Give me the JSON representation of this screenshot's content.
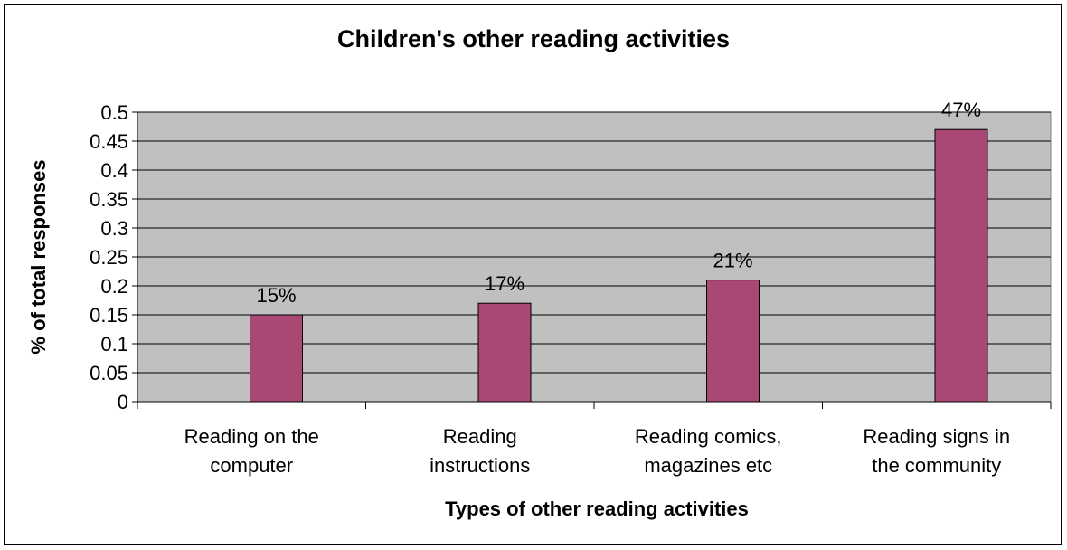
{
  "chart_data": {
    "type": "bar",
    "title": "Children's other reading activities",
    "xlabel": "Types of other reading activities",
    "ylabel": "% of total responses",
    "categories": [
      [
        "Reading on the",
        "computer"
      ],
      [
        "Reading",
        "instructions"
      ],
      [
        "Reading comics,",
        "magazines etc"
      ],
      [
        "Reading signs in",
        "the community"
      ]
    ],
    "values": [
      0.15,
      0.17,
      0.21,
      0.47
    ],
    "data_labels": [
      "15%",
      "17%",
      "21%",
      "47%"
    ],
    "ylim": [
      0,
      0.5
    ],
    "yticks": [
      "0",
      "0.05",
      "0.1",
      "0.15",
      "0.2",
      "0.25",
      "0.3",
      "0.35",
      "0.4",
      "0.45",
      "0.5"
    ],
    "ytick_values": [
      0,
      0.05,
      0.1,
      0.15,
      0.2,
      0.25,
      0.3,
      0.35,
      0.4,
      0.45,
      0.5
    ],
    "grid": true,
    "legend": "none",
    "colors": {
      "bar": "#A94874",
      "plot_bg": "#C0C0C0",
      "gridline": "#000000"
    }
  }
}
